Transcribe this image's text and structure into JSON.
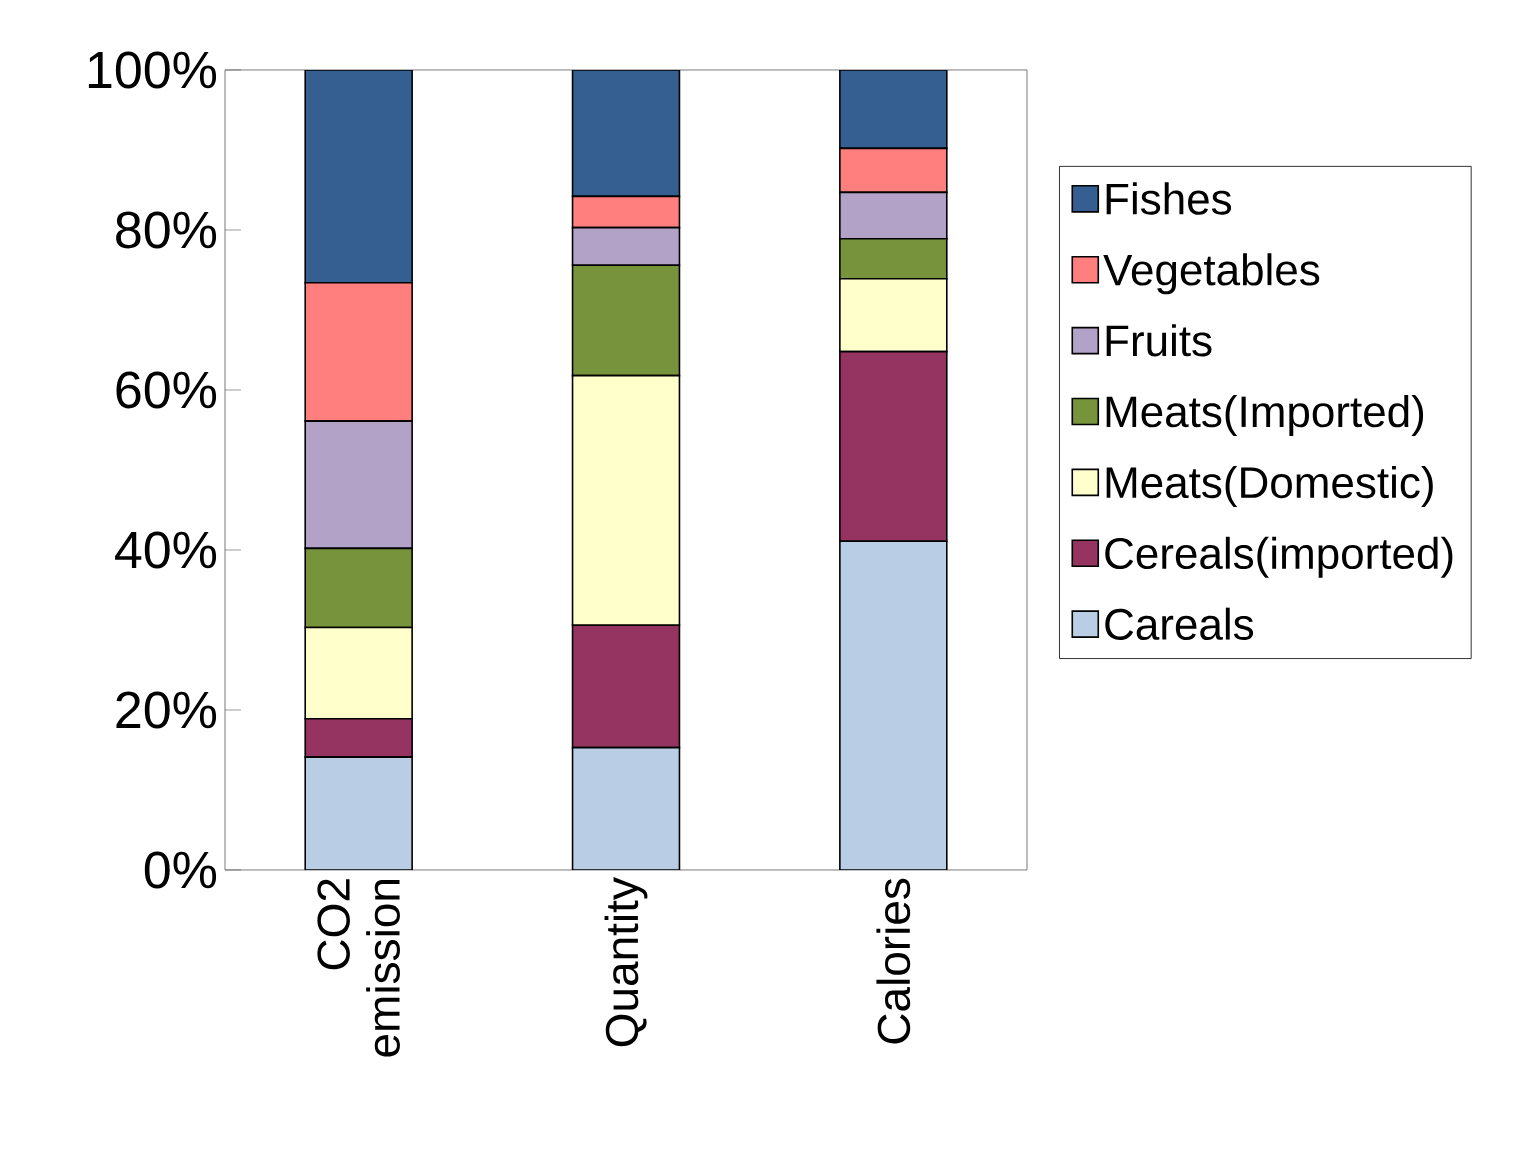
{
  "chart_data": {
    "type": "bar",
    "stacked": true,
    "categories": [
      "CO2 emission",
      "Quantity",
      "Calories"
    ],
    "series": [
      {
        "name": "Careals",
        "color": "#b9cde5",
        "values": [
          14.1,
          15.3,
          41.1
        ]
      },
      {
        "name": "Cereals(imported)",
        "color": "#953460",
        "values": [
          4.8,
          15.3,
          23.7
        ]
      },
      {
        "name": "Meats(Domestic)",
        "color": "#ffffcc",
        "values": [
          11.4,
          31.2,
          9.1
        ]
      },
      {
        "name": "Meats(Imported)",
        "color": "#77933c",
        "values": [
          9.9,
          13.8,
          5.0
        ]
      },
      {
        "name": "Fruits",
        "color": "#b3a2c7",
        "values": [
          15.9,
          4.7,
          5.8
        ]
      },
      {
        "name": "Vegetables",
        "color": "#ff7f7f",
        "values": [
          17.3,
          3.9,
          5.5
        ]
      },
      {
        "name": "Fishes",
        "color": "#355f91",
        "values": [
          26.6,
          15.8,
          9.8
        ]
      }
    ],
    "ylim": [
      0,
      100
    ],
    "yticks": [
      {
        "value": 0,
        "label": "0%"
      },
      {
        "value": 20,
        "label": "20%"
      },
      {
        "value": 40,
        "label": "40%"
      },
      {
        "value": 60,
        "label": "60%"
      },
      {
        "value": 80,
        "label": "80%"
      },
      {
        "value": 100,
        "label": "100%"
      }
    ],
    "legend": "right"
  }
}
